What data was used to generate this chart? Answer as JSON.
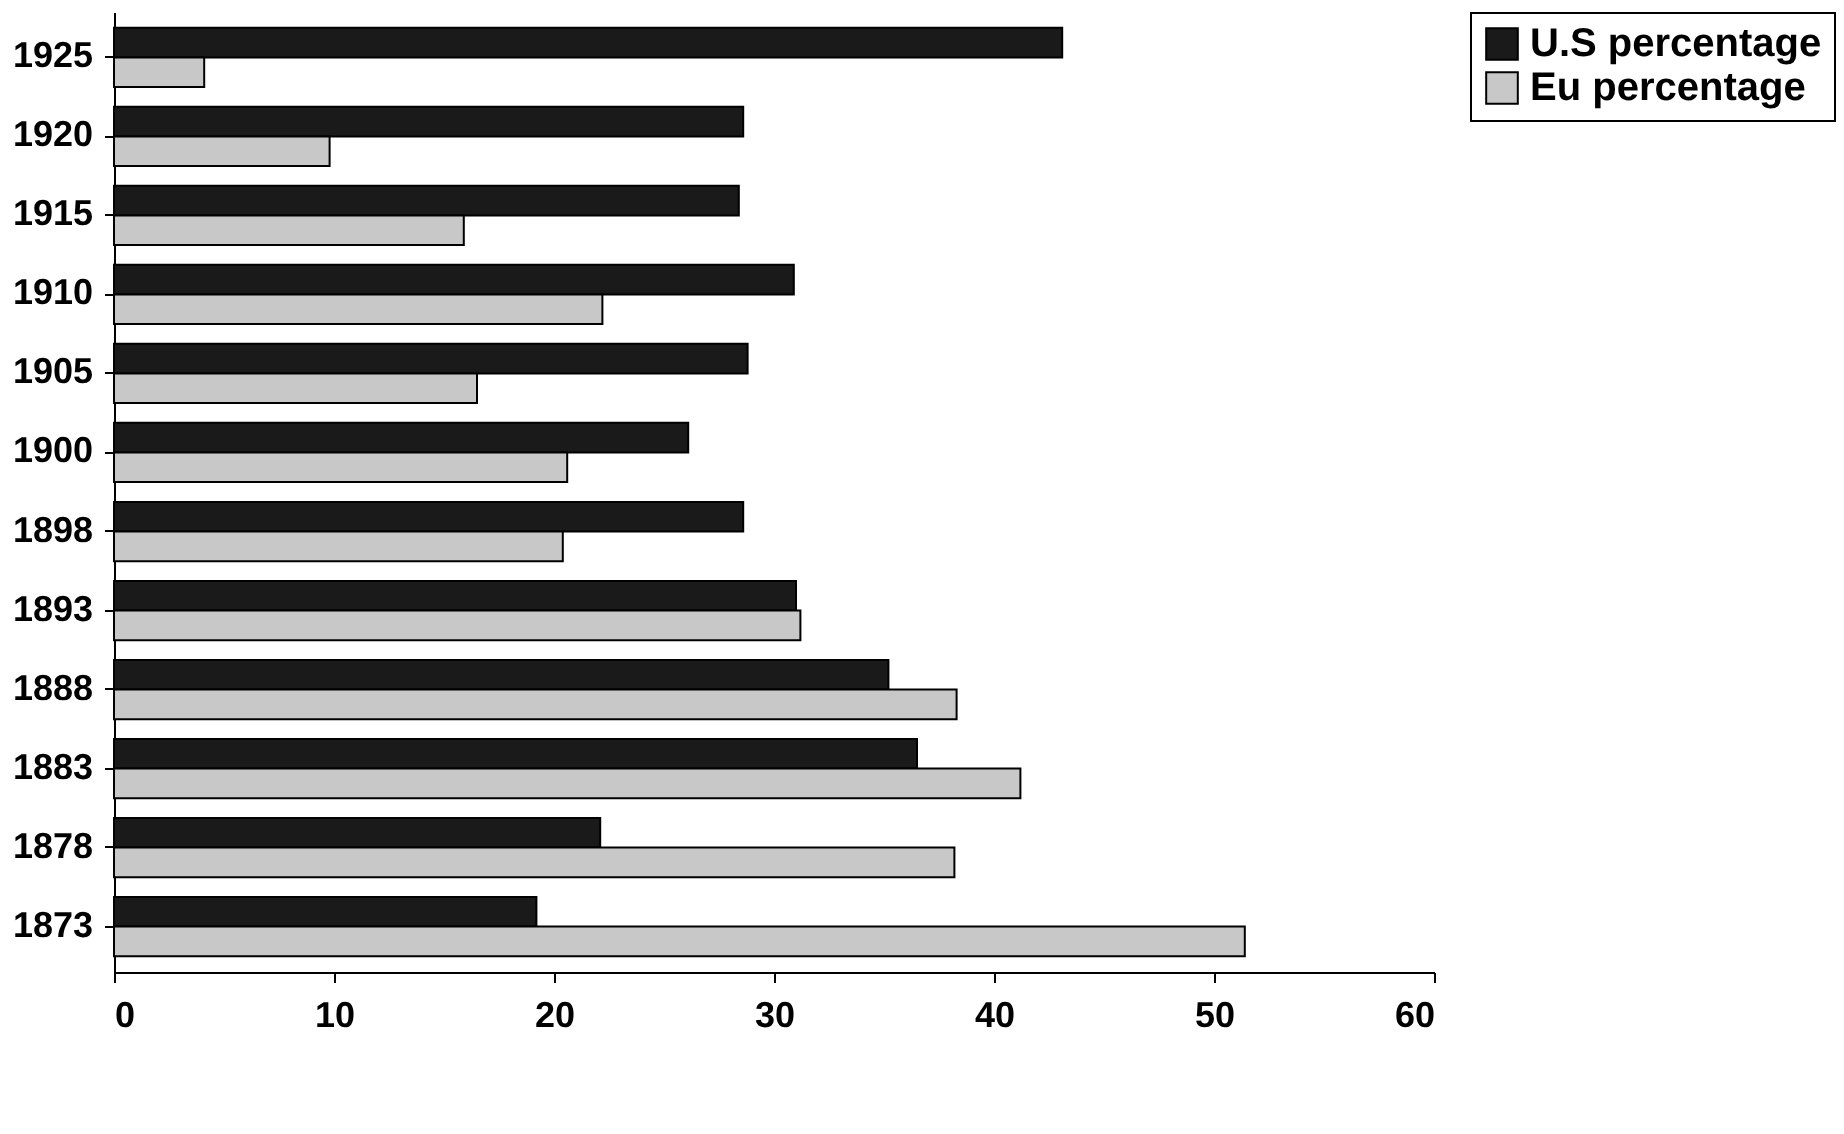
{
  "chart_data": {
    "type": "bar",
    "orientation": "horizontal",
    "categories": [
      "1925",
      "1920",
      "1915",
      "1910",
      "1905",
      "1900",
      "1898",
      "1893",
      "1888",
      "1883",
      "1878",
      "1873"
    ],
    "series": [
      {
        "name": "U.S percentage",
        "color": "#1a1a1a",
        "values": [
          43.1,
          28.6,
          28.4,
          30.9,
          28.8,
          26.1,
          28.6,
          31.0,
          35.2,
          36.5,
          22.1,
          19.2
        ]
      },
      {
        "name": "Eu percentage",
        "color": "#c8c8c8",
        "values": [
          4.1,
          9.8,
          15.9,
          22.2,
          16.5,
          20.6,
          20.4,
          31.2,
          38.3,
          41.2,
          38.2,
          51.4
        ]
      }
    ],
    "xlim": [
      0,
      60
    ],
    "xticks": [
      0,
      10,
      20,
      30,
      40,
      50,
      60
    ],
    "grid": false,
    "legend": "right"
  }
}
